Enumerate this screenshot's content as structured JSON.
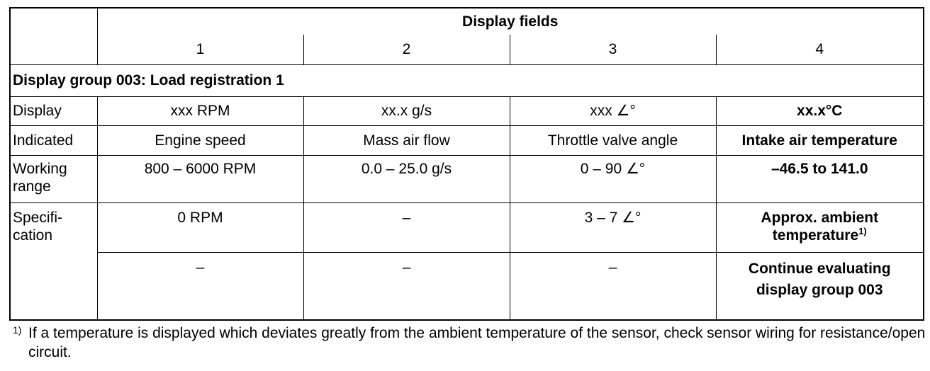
{
  "table": {
    "header": {
      "title": "Display fields",
      "columns": [
        "1",
        "2",
        "3",
        "4"
      ]
    },
    "group_title": "Display group 003: Load registration 1",
    "rows": [
      {
        "label": "Display",
        "cells": [
          "xxx RPM",
          "xx.x g/s",
          "xxx ∠°",
          "xx.x°C"
        ]
      },
      {
        "label": "Indicated",
        "cells": [
          "Engine speed",
          "Mass air flow",
          "Throttle valve angle",
          "Intake air temperature"
        ]
      },
      {
        "label": "Working range",
        "cells": [
          "800 – 6000 RPM",
          "0.0 – 25.0 g/s",
          "0 – 90 ∠°",
          "–46.5 to 141.0"
        ]
      },
      {
        "label": "Specifi-cation",
        "cells": [
          "0 RPM",
          "–",
          "3 – 7 ∠°",
          "Approx. ambient temperature"
        ],
        "ref": "1)"
      },
      {
        "cells": [
          "–",
          "–",
          "–",
          "Continue evaluating display group 003"
        ]
      }
    ]
  },
  "footnote": {
    "marker": "1)",
    "text": "If a temperature is displayed which deviates greatly from the ambient temperature of the sensor, check sensor wiring for resistance/open circuit."
  }
}
